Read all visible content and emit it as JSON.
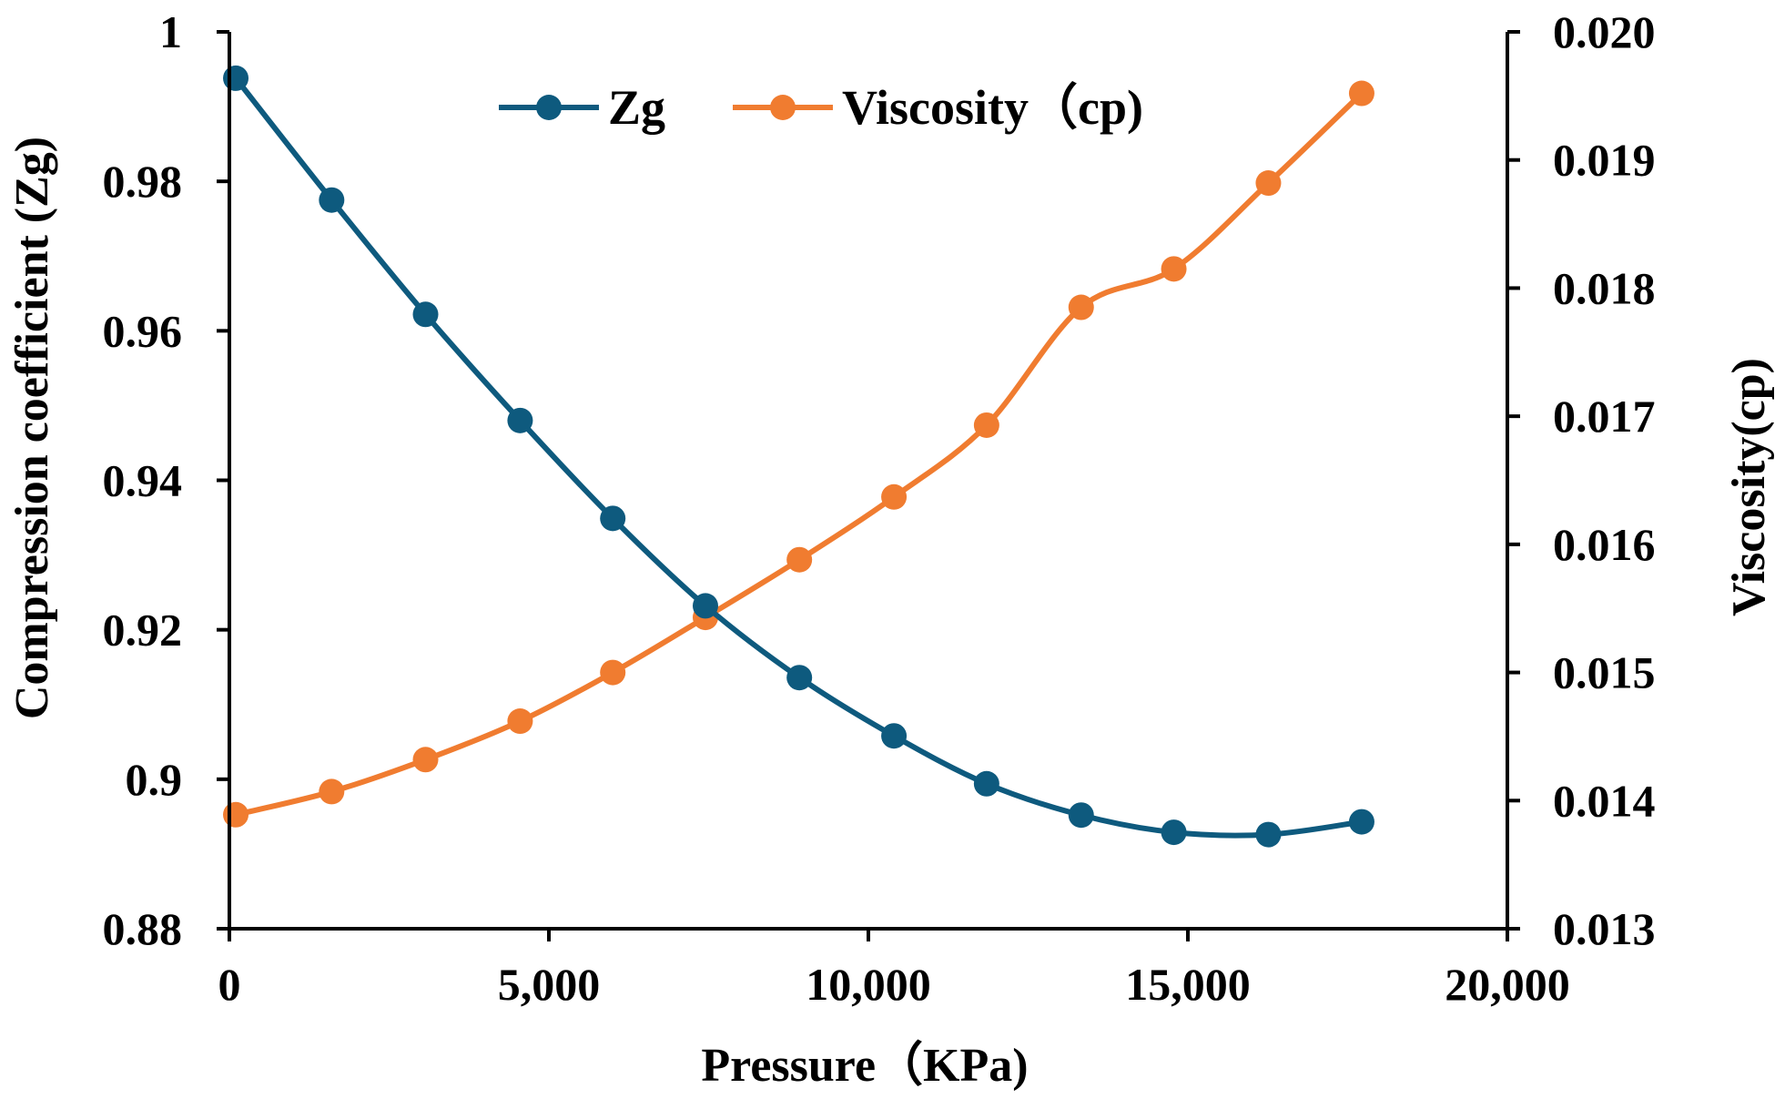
{
  "chart_data": {
    "type": "line",
    "title": "",
    "xlabel": "Pressure（KPa)",
    "ylabel_left": "Compression coefficient (Zg)",
    "ylabel_right": "Viscosity(cp)",
    "xlim": [
      0,
      20000
    ],
    "ylim_left": [
      0.88,
      1.0
    ],
    "ylim_right": [
      0.013,
      0.02
    ],
    "x_ticks": [
      0,
      5000,
      10000,
      15000,
      20000
    ],
    "x_tick_labels": [
      "0",
      "5,000",
      "10,000",
      "15,000",
      "20,000"
    ],
    "y_left_ticks": [
      0.88,
      0.9,
      0.92,
      0.94,
      0.96,
      0.98,
      1.0
    ],
    "y_left_tick_labels": [
      "0.88",
      "0.9",
      "0.92",
      "0.94",
      "0.96",
      "0.98",
      "1"
    ],
    "y_right_ticks": [
      0.013,
      0.014,
      0.015,
      0.016,
      0.017,
      0.018,
      0.019,
      0.02
    ],
    "y_right_tick_labels": [
      "0.013",
      "0.014",
      "0.015",
      "0.016",
      "0.017",
      "0.018",
      "0.019",
      "0.020"
    ],
    "grid": false,
    "legend_position": "top-center",
    "series": [
      {
        "name": "Zg",
        "axis": "left",
        "color": "#0e5a7e",
        "x": [
          100,
          1600,
          3070,
          4550,
          6000,
          7450,
          8920,
          10400,
          11850,
          13330,
          14780,
          16260,
          17720
        ],
        "values": [
          0.9938,
          0.9775,
          0.9622,
          0.948,
          0.9349,
          0.9232,
          0.9136,
          0.9058,
          0.8994,
          0.8952,
          0.8929,
          0.8926,
          0.8943
        ]
      },
      {
        "name": "Viscosity（cp)",
        "axis": "right",
        "color": "#f07c30",
        "x": [
          100,
          1600,
          3070,
          4550,
          6000,
          7450,
          8920,
          10400,
          11850,
          13330,
          14780,
          16260,
          17720
        ],
        "values": [
          0.01389,
          0.01407,
          0.01432,
          0.01462,
          0.015,
          0.01543,
          0.01588,
          0.01637,
          0.01693,
          0.01785,
          0.01815,
          0.01882,
          0.01952
        ]
      }
    ]
  }
}
